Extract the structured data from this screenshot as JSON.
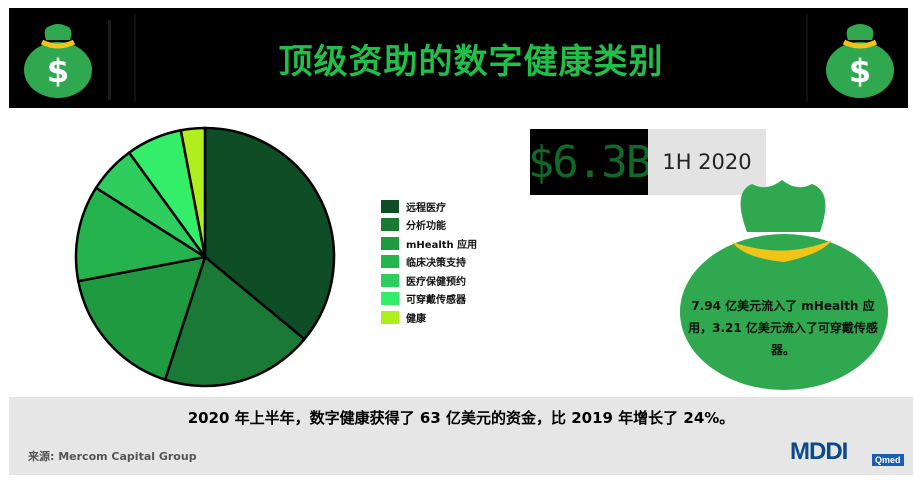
{
  "header": {
    "title": "顶级资助的数字健康类别"
  },
  "headline": {
    "amount": "$6.3B",
    "period": "1H 2020"
  },
  "bag_text": "7.94 亿美元流入了 mHealth 应用，3.21 亿美元流入了可穿戴传感器。",
  "summary": "2020 年上半年，数字健康获得了 63 亿美元的资金，比 2019 年增长了 24%。",
  "source": "来源: Mercom Capital Group",
  "logo": {
    "main": "MDDI",
    "badge": "Qmed"
  },
  "chart_data": {
    "type": "pie",
    "title": "",
    "labels": [
      "远程医疗",
      "分析功能",
      "mHealth 应用",
      "临床决策支持",
      "医疗保健预约",
      "可穿戴传感器",
      "健康"
    ],
    "values": [
      36,
      19,
      17,
      12,
      6,
      7,
      3
    ],
    "colors": [
      "#0e4d25",
      "#1a7a35",
      "#1f9a40",
      "#24b34c",
      "#2fcc5e",
      "#34ee6a",
      "#b0ef1d"
    ],
    "legend": "right"
  }
}
